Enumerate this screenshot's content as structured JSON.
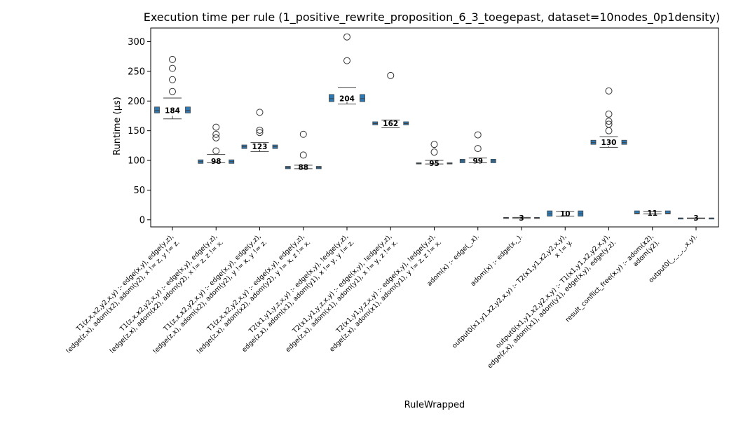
{
  "chart_data": {
    "type": "box",
    "title": "Execution time per rule (1_positive_rewrite_proposition_6_3_toegepast, dataset=10nodes_0p1density)",
    "xlabel": "RuleWrapped",
    "ylabel": "Runtime (µs)",
    "ylim": [
      -12,
      323
    ],
    "yticks": [
      0,
      50,
      100,
      150,
      200,
      250,
      300
    ],
    "grid": false,
    "legend": "none",
    "colors": {
      "box": "#2e7ab5",
      "edge": "#404040",
      "median": "#404040",
      "text": "#000000"
    },
    "categories": [
      {
        "label": [
          "T1(z,x,x2,y2,x,y) :-    edge(x,y),    edge(y,z),",
          "!edge(z,x),    adom(x2),    adom(y2),    x != z,    y != z."
        ],
        "median": 184,
        "median_label": "184",
        "left_box": [
          180,
          190
        ],
        "right_box": [
          180,
          190
        ],
        "center": {
          "whisker_low": 170,
          "q1": 175,
          "q3": 205
        },
        "outliers": [
          216,
          236,
          255,
          270
        ]
      },
      {
        "label": [
          "T1(z,x,x2,y2,x,y) :-    edge(x,y),    edge(y,z),",
          "!edge(z,x),    adom(x2),    adom(y2),    x != z,    z != x."
        ],
        "median": 98,
        "median_label": "98",
        "left_box": [
          95,
          101
        ],
        "right_box": [
          95,
          101
        ],
        "center": {
          "whisker_low": 96,
          "q1": 98,
          "q3": 110
        },
        "outliers": [
          116,
          138,
          144,
          156
        ]
      },
      {
        "label": [
          "T1(z,x,x2,y2,x,y) :-    edge(x,y),    edge(y,z),",
          "!edge(z,x),    adom(x2),    adom(y2),    y != x,    y != z."
        ],
        "median": 123,
        "median_label": "123",
        "left_box": [
          120,
          126
        ],
        "right_box": [
          120,
          126
        ],
        "center": {
          "whisker_low": 115,
          "q1": 118,
          "q3": 130
        },
        "outliers": [
          147,
          151,
          181
        ]
      },
      {
        "label": [
          "T1(z,x,x2,y2,x,y) :-    edge(x,y),    edge(y,z),",
          "!edge(z,x),    adom(x2),    adom(y2),    y != x,    z != x."
        ],
        "median": 88,
        "median_label": "88",
        "left_box": [
          86,
          90
        ],
        "right_box": [
          86,
          90
        ],
        "center": {
          "whisker_low": 86,
          "q1": 87,
          "q3": 92
        },
        "outliers": [
          109,
          144
        ]
      },
      {
        "label": [
          "T2(x1,y1,y,z,x,y) :-    edge(x,y),    !edge(y,z),",
          "edge(z,x),    adom(x1),    adom(y1),    x != y,    y != z."
        ],
        "median": 204,
        "median_label": "204",
        "left_box": [
          199,
          211
        ],
        "right_box": [
          199,
          211
        ],
        "center": {
          "whisker_low": 195,
          "q1": 198,
          "q3": 223
        },
        "outliers": [
          268,
          308
        ]
      },
      {
        "label": [
          "T2(x1,y1,y,z,x,y) :-    edge(x,y),    !edge(y,z),",
          "edge(z,x),    adom(x1),    adom(y1),    x != y,    z != x."
        ],
        "median": 162,
        "median_label": "162",
        "left_box": [
          160,
          165
        ],
        "right_box": [
          160,
          165
        ],
        "center": {
          "whisker_low": 155,
          "q1": 155,
          "q3": 168
        },
        "outliers": [
          243
        ]
      },
      {
        "label": [
          "T2(x1,y1,y,z,x,y) :-    edge(x,y),    !edge(y,z),",
          "edge(z,x),    adom(x1),    adom(y1),    y != z,    z != x."
        ],
        "median": 95,
        "median_label": "95",
        "left_box": [
          94,
          96
        ],
        "right_box": [
          94,
          96
        ],
        "center": {
          "whisker_low": 94,
          "q1": 95,
          "q3": 100
        },
        "outliers": [
          114,
          127
        ]
      },
      {
        "label": [
          "adom(x) :-    edge(_,x).",
          ""
        ],
        "median": 99,
        "median_label": "99",
        "left_box": [
          96,
          102
        ],
        "right_box": [
          96,
          102
        ],
        "center": {
          "whisker_low": 96,
          "q1": 98,
          "q3": 104
        },
        "outliers": [
          120,
          143
        ]
      },
      {
        "label": [
          "adom(x) :-    edge(x,_).",
          ""
        ],
        "median": 3,
        "median_label": "3",
        "left_box": [
          3,
          4
        ],
        "right_box": [
          3,
          4
        ],
        "center": {
          "whisker_low": 2,
          "q1": 3,
          "q3": 4
        },
        "outliers": []
      },
      {
        "label": [
          "output0(x1,y1,x2,y2,x,y) :-    T2(x1,y1,x2,y2,x,y),",
          "x != y."
        ],
        "median": 10,
        "median_label": "10",
        "left_box": [
          6,
          15
        ],
        "right_box": [
          6,
          15
        ],
        "center": {
          "whisker_low": 6,
          "q1": 8,
          "q3": 14
        },
        "outliers": []
      },
      {
        "label": [
          "output0(x1,y1,x2,y2,x,y) :-    T1(x1,y1,x2,y2,x,y),",
          "edge(z,x),    adom(x1),    adom(y1),    edge(x,y),    edge(y,z)."
        ],
        "median": 130,
        "median_label": "130",
        "left_box": [
          127,
          134
        ],
        "right_box": [
          127,
          134
        ],
        "center": {
          "whisker_low": 122,
          "q1": 124,
          "q3": 140
        },
        "outliers": [
          150,
          161,
          166,
          178,
          217
        ]
      },
      {
        "label": [
          "result_conflict_free(x,y) :-    adom(x2),",
          "adom(y2)."
        ],
        "median": 11,
        "median_label": "11",
        "left_box": [
          10,
          15
        ],
        "right_box": [
          10,
          15
        ],
        "center": {
          "whisker_low": 10,
          "q1": 11,
          "q3": 14
        },
        "outliers": []
      },
      {
        "label": [
          "output0(_,_,_,_,x,y).",
          ""
        ],
        "median": 3,
        "median_label": "3",
        "left_box": [
          2,
          3
        ],
        "right_box": [
          2,
          3
        ],
        "center": {
          "whisker_low": 2,
          "q1": 2,
          "q3": 3
        },
        "outliers": []
      }
    ]
  }
}
